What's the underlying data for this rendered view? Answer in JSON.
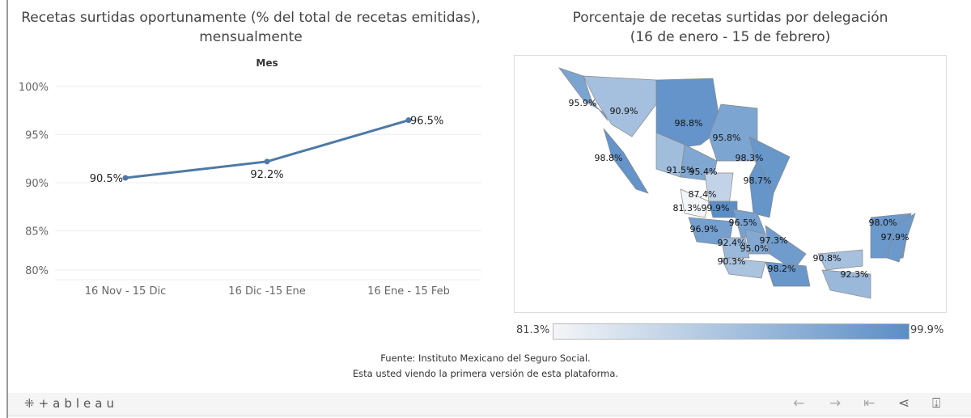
{
  "chart_data": [
    {
      "type": "line",
      "title": "Recetas surtidas oportunamente (% del total de recetas emitidas), mensualmente",
      "xlabel": "Mes",
      "ylabel": "",
      "categories": [
        "16 Nov - 15 Dic",
        "16 Dic -15 Ene",
        "16 Ene - 15 Feb"
      ],
      "values": [
        90.5,
        92.2,
        96.5
      ],
      "labels": [
        "90.5%",
        "92.2%",
        "96.5%"
      ],
      "yticks": [
        "100%",
        "95%",
        "90%",
        "85%",
        "80%"
      ],
      "ytick_values": [
        100,
        95,
        90,
        85,
        80
      ],
      "ylim": [
        80,
        100
      ],
      "grid": true,
      "color": "#4e79a7"
    },
    {
      "type": "heatmap",
      "title": "Porcentaje de recetas surtidas por delegación",
      "subtitle": "(16 de enero - 15 de febrero)",
      "values": [
        "95.9%",
        "90.9%",
        "98.8%",
        "98.8%",
        "95.8%",
        "98.3%",
        "91.5%",
        "95.4%",
        "98.7%",
        "87.4%",
        "81.3%",
        "99.9%",
        "96.5%",
        "96.9%",
        "92.4%",
        "95.0%",
        "97.3%",
        "90.3%",
        "98.2%",
        "90.8%",
        "92.3%",
        "98.0%",
        "97.9%"
      ],
      "numeric": [
        95.9,
        90.9,
        98.8,
        98.8,
        95.8,
        98.3,
        91.5,
        95.4,
        98.7,
        87.4,
        81.3,
        99.9,
        96.5,
        96.9,
        92.4,
        95.0,
        97.3,
        90.3,
        98.2,
        90.8,
        92.3,
        98.0,
        97.9
      ],
      "legend": {
        "min": "81.3%",
        "max": "99.9%",
        "low_color": "#f4f5f7",
        "high_color": "#5b8ec6"
      }
    }
  ],
  "footer": {
    "source": "Fuente: Instituto Mexicano del Seguro Social.",
    "note": "Esta usted viendo la primera versión de esta plataforma.",
    "logo": "+ableau"
  }
}
